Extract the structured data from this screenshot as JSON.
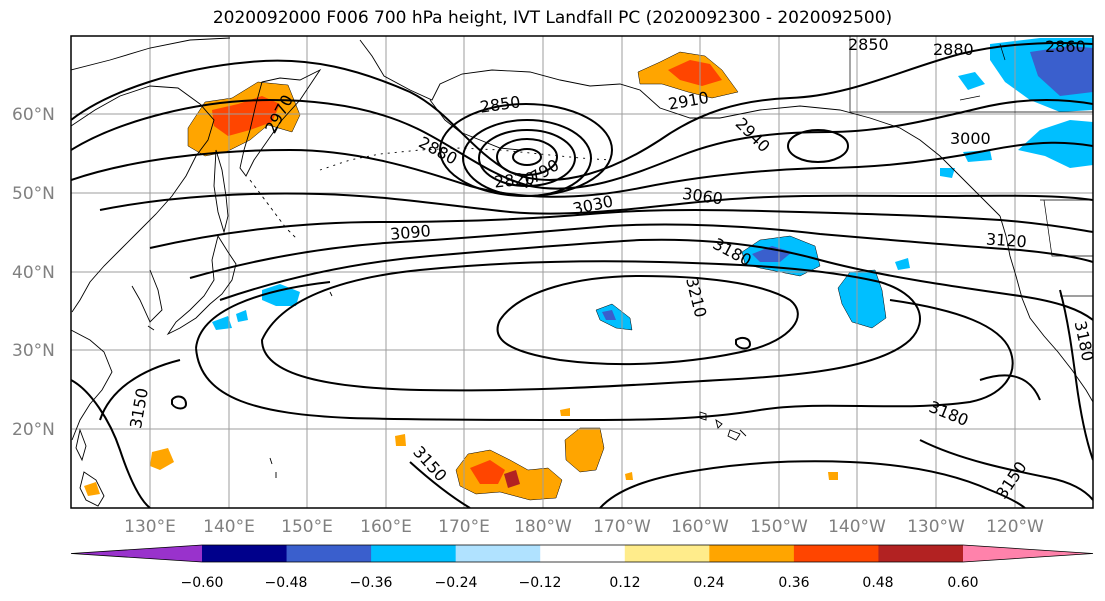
{
  "title": "2020092000 F006 700 hPa height, IVT Landfall PC (2020092300 - 2020092500)",
  "latitude_labels": [
    "60°N",
    "50°N",
    "40°N",
    "30°N",
    "20°N"
  ],
  "longitude_labels": [
    "130°E",
    "140°E",
    "150°E",
    "160°E",
    "170°E",
    "180°W",
    "170°W",
    "160°W",
    "150°W",
    "140°W",
    "130°W",
    "120°W"
  ],
  "contour_labels": [
    "2850",
    "2880",
    "2970",
    "2910",
    "2940",
    "3000",
    "2850",
    "2880",
    "2820",
    "2790",
    "3030",
    "3060",
    "3090",
    "3120",
    "3180",
    "3210",
    "3150",
    "3180",
    "3150",
    "3150",
    "3180",
    "2860"
  ],
  "colorbar": {
    "tick_labels": [
      "−0.60",
      "−0.48",
      "−0.36",
      "−0.24",
      "−0.12",
      "0.12",
      "0.24",
      "0.36",
      "0.48",
      "0.60"
    ],
    "colors": [
      "#9932cc",
      "#00008b",
      "#3a5fcd",
      "#00bfff",
      "#b0e2ff",
      "#ffffff",
      "#ffec8b",
      "#ffa500",
      "#ff4500",
      "#b22222",
      "#ff82ab"
    ]
  },
  "shading_colors": {
    "neg_strong": "#3a5fcd",
    "neg": "#00bfff",
    "pos": "#ffa500",
    "pos_strong": "#ff4500",
    "pos_extreme": "#b22222"
  }
}
